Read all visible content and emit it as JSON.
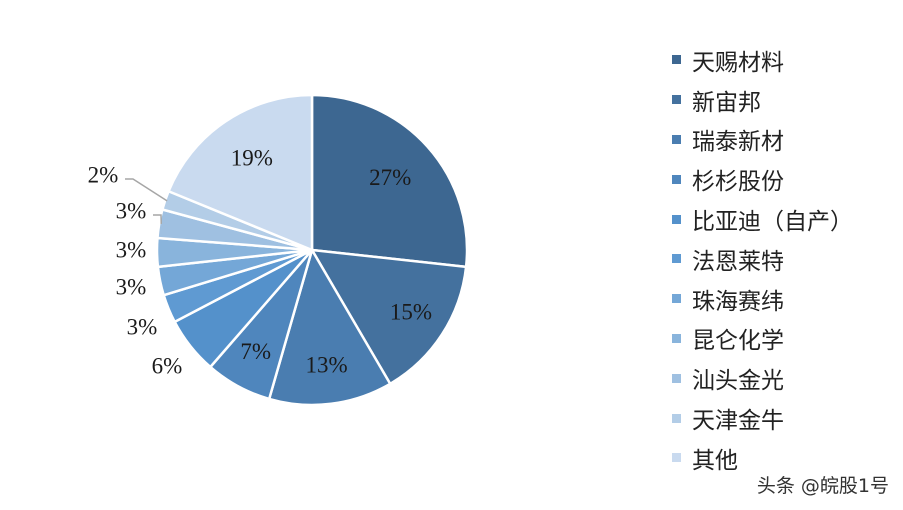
{
  "chart_data": {
    "type": "pie",
    "categories": [
      "天赐材料",
      "新宙邦",
      "瑞泰新材",
      "杉杉股份",
      "比亚迪（自产）",
      "法恩莱特",
      "珠海赛纬",
      "昆仑化学",
      "汕头金光",
      "天津金牛",
      "其他"
    ],
    "values": [
      27,
      15,
      13,
      7,
      6,
      3,
      3,
      3,
      3,
      2,
      19
    ],
    "labels": [
      "27%",
      "15%",
      "13%",
      "7%",
      "6%",
      "3%",
      "3%",
      "3%",
      "3%",
      "2%",
      "19%"
    ],
    "colors": [
      "#3d6791",
      "#44719e",
      "#4a7db0",
      "#4f86bd",
      "#5491cb",
      "#5f9ad2",
      "#74a7d7",
      "#89b4dc",
      "#9fc0e1",
      "#b3cde7",
      "#c9daef"
    ],
    "legend_position": "right",
    "start_angle_deg": 0,
    "direction": "clockwise"
  },
  "watermark": "头条 @皖股1号"
}
